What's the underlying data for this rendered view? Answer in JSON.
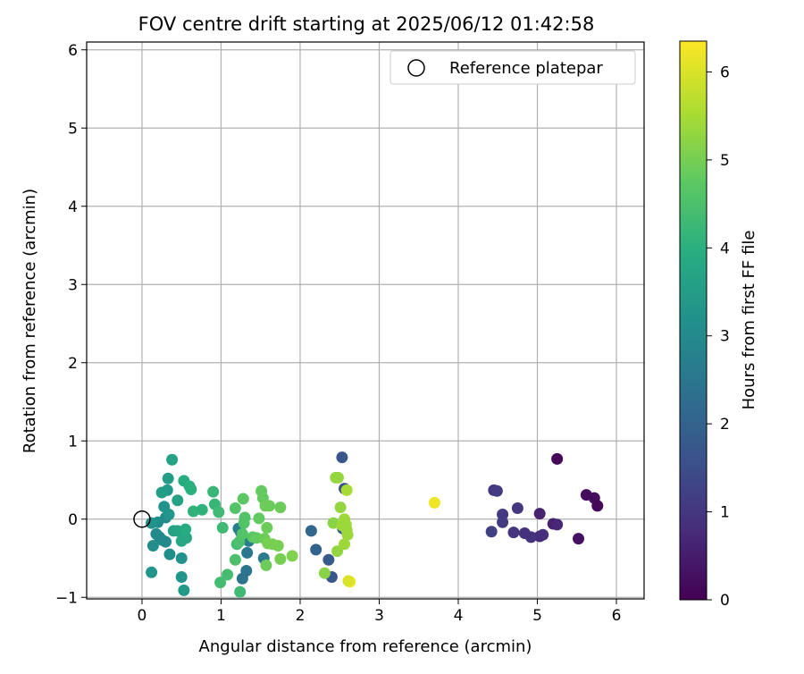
{
  "chart_data": {
    "type": "scatter",
    "title": "FOV centre drift starting at 2025/06/12 01:42:58",
    "xlabel": "Angular distance from reference (arcmin)",
    "ylabel": "Rotation from reference (arcmin)",
    "xlim": [
      -0.7,
      6.35
    ],
    "ylim": [
      -1.02,
      6.1
    ],
    "xticks": [
      "0",
      "1",
      "2",
      "3",
      "4",
      "5",
      "6"
    ],
    "yticks": [
      "−1",
      "0",
      "1",
      "2",
      "3",
      "4",
      "5",
      "6"
    ],
    "grid": true,
    "legend": {
      "position": "top-right",
      "entries": [
        "Reference platepar"
      ]
    },
    "reference_point": {
      "x": 0,
      "y": 0
    },
    "colorbar": {
      "label": "Hours from first FF file",
      "range": [
        0,
        6.35
      ],
      "ticks": [
        "0",
        "1",
        "2",
        "3",
        "4",
        "5",
        "6"
      ],
      "colormap": "viridis"
    },
    "points": [
      {
        "x": 5.25,
        "y": 0.77,
        "h": 0.1
      },
      {
        "x": 5.62,
        "y": 0.31,
        "h": 0.2
      },
      {
        "x": 5.72,
        "y": 0.27,
        "h": 0.2
      },
      {
        "x": 5.76,
        "y": 0.17,
        "h": 0.1
      },
      {
        "x": 5.52,
        "y": -0.25,
        "h": 0.3
      },
      {
        "x": 5.2,
        "y": -0.06,
        "h": 0.6
      },
      {
        "x": 5.25,
        "y": -0.07,
        "h": 0.7
      },
      {
        "x": 5.03,
        "y": 0.07,
        "h": 0.6
      },
      {
        "x": 5.07,
        "y": -0.2,
        "h": 0.9
      },
      {
        "x": 5.03,
        "y": -0.22,
        "h": 0.8
      },
      {
        "x": 4.92,
        "y": -0.23,
        "h": 0.9
      },
      {
        "x": 4.84,
        "y": -0.18,
        "h": 0.9
      },
      {
        "x": 4.7,
        "y": -0.17,
        "h": 1.0
      },
      {
        "x": 4.75,
        "y": 0.14,
        "h": 1.0
      },
      {
        "x": 4.56,
        "y": 0.06,
        "h": 1.1
      },
      {
        "x": 4.56,
        "y": -0.04,
        "h": 1.1
      },
      {
        "x": 4.45,
        "y": 0.37,
        "h": 1.0
      },
      {
        "x": 4.49,
        "y": 0.36,
        "h": 1.1
      },
      {
        "x": 4.42,
        "y": -0.16,
        "h": 1.2
      },
      {
        "x": 2.53,
        "y": 0.79,
        "h": 1.7
      },
      {
        "x": 2.56,
        "y": 0.39,
        "h": 1.6
      },
      {
        "x": 2.54,
        "y": -0.12,
        "h": 1.8
      },
      {
        "x": 2.4,
        "y": -0.74,
        "h": 1.7
      },
      {
        "x": 2.36,
        "y": -0.52,
        "h": 1.8
      },
      {
        "x": 2.2,
        "y": -0.39,
        "h": 2.0
      },
      {
        "x": 2.14,
        "y": -0.15,
        "h": 2.1
      },
      {
        "x": 1.27,
        "y": -0.76,
        "h": 2.4
      },
      {
        "x": 1.32,
        "y": -0.66,
        "h": 2.4
      },
      {
        "x": 1.33,
        "y": -0.43,
        "h": 2.5
      },
      {
        "x": 1.25,
        "y": -0.17,
        "h": 2.6
      },
      {
        "x": 1.54,
        "y": -0.5,
        "h": 2.6
      },
      {
        "x": 1.35,
        "y": -0.28,
        "h": 2.6
      },
      {
        "x": 1.22,
        "y": -0.12,
        "h": 2.7
      },
      {
        "x": 0.22,
        "y": -0.23,
        "h": 2.8
      },
      {
        "x": 0.3,
        "y": -0.29,
        "h": 3.1
      },
      {
        "x": 0.14,
        "y": -0.34,
        "h": 3.1
      },
      {
        "x": 0.35,
        "y": -0.45,
        "h": 3.1
      },
      {
        "x": 0.5,
        "y": -0.5,
        "h": 3.2
      },
      {
        "x": 0.18,
        "y": -0.19,
        "h": 3.0
      },
      {
        "x": 0.26,
        "y": -0.27,
        "h": 3.0
      },
      {
        "x": 0.3,
        "y": 0.02,
        "h": 3.0
      },
      {
        "x": 0.2,
        "y": -0.04,
        "h": 3.1
      },
      {
        "x": 0.12,
        "y": -0.05,
        "h": 3.2
      },
      {
        "x": 0.12,
        "y": -0.68,
        "h": 3.3
      },
      {
        "x": 0.5,
        "y": -0.74,
        "h": 3.3
      },
      {
        "x": 0.53,
        "y": -0.91,
        "h": 3.4
      },
      {
        "x": 0.34,
        "y": 0.06,
        "h": 3.3
      },
      {
        "x": 0.28,
        "y": 0.16,
        "h": 3.2
      },
      {
        "x": 0.32,
        "y": 0.37,
        "h": 3.4
      },
      {
        "x": 0.25,
        "y": 0.34,
        "h": 3.5
      },
      {
        "x": 0.33,
        "y": 0.52,
        "h": 3.5
      },
      {
        "x": 0.38,
        "y": 0.76,
        "h": 3.6
      },
      {
        "x": 0.45,
        "y": 0.24,
        "h": 3.6
      },
      {
        "x": 0.4,
        "y": -0.15,
        "h": 3.6
      },
      {
        "x": 0.45,
        "y": -0.15,
        "h": 3.7
      },
      {
        "x": 0.5,
        "y": -0.28,
        "h": 3.8
      },
      {
        "x": 0.56,
        "y": -0.24,
        "h": 3.8
      },
      {
        "x": 0.55,
        "y": -0.13,
        "h": 3.9
      },
      {
        "x": 0.53,
        "y": 0.49,
        "h": 3.9
      },
      {
        "x": 0.6,
        "y": 0.42,
        "h": 4.0
      },
      {
        "x": 0.62,
        "y": 0.38,
        "h": 4.0
      },
      {
        "x": 0.65,
        "y": 0.1,
        "h": 4.1
      },
      {
        "x": 0.76,
        "y": 0.12,
        "h": 4.1
      },
      {
        "x": 0.9,
        "y": 0.35,
        "h": 4.2
      },
      {
        "x": 0.92,
        "y": 0.19,
        "h": 4.2
      },
      {
        "x": 0.97,
        "y": 0.09,
        "h": 4.3
      },
      {
        "x": 1.02,
        "y": -0.11,
        "h": 4.3
      },
      {
        "x": 0.99,
        "y": -0.81,
        "h": 4.4
      },
      {
        "x": 1.08,
        "y": -0.71,
        "h": 4.4
      },
      {
        "x": 1.2,
        "y": -0.32,
        "h": 4.4
      },
      {
        "x": 1.24,
        "y": -0.93,
        "h": 4.3
      },
      {
        "x": 1.18,
        "y": -0.52,
        "h": 4.5
      },
      {
        "x": 1.23,
        "y": -0.29,
        "h": 4.5
      },
      {
        "x": 1.27,
        "y": -0.19,
        "h": 4.6
      },
      {
        "x": 1.29,
        "y": -0.05,
        "h": 4.6
      },
      {
        "x": 1.3,
        "y": 0.02,
        "h": 4.6
      },
      {
        "x": 1.18,
        "y": 0.14,
        "h": 4.6
      },
      {
        "x": 1.28,
        "y": 0.26,
        "h": 4.7
      },
      {
        "x": 1.4,
        "y": -0.23,
        "h": 4.7
      },
      {
        "x": 1.45,
        "y": -0.24,
        "h": 4.8
      },
      {
        "x": 1.51,
        "y": 0.36,
        "h": 4.8
      },
      {
        "x": 1.53,
        "y": 0.27,
        "h": 4.8
      },
      {
        "x": 1.48,
        "y": 0.01,
        "h": 4.8
      },
      {
        "x": 1.56,
        "y": 0.17,
        "h": 4.9
      },
      {
        "x": 1.61,
        "y": 0.17,
        "h": 4.9
      },
      {
        "x": 1.58,
        "y": -0.11,
        "h": 4.9
      },
      {
        "x": 1.55,
        "y": -0.25,
        "h": 4.9
      },
      {
        "x": 1.59,
        "y": -0.31,
        "h": 5.0
      },
      {
        "x": 1.57,
        "y": -0.59,
        "h": 4.9
      },
      {
        "x": 1.65,
        "y": -0.32,
        "h": 5.0
      },
      {
        "x": 1.72,
        "y": -0.34,
        "h": 5.0
      },
      {
        "x": 1.75,
        "y": 0.15,
        "h": 4.9
      },
      {
        "x": 1.75,
        "y": -0.51,
        "h": 5.0
      },
      {
        "x": 1.9,
        "y": -0.47,
        "h": 5.1
      },
      {
        "x": 2.31,
        "y": -0.69,
        "h": 5.2
      },
      {
        "x": 2.42,
        "y": -0.05,
        "h": 5.2
      },
      {
        "x": 2.45,
        "y": 0.53,
        "h": 5.3
      },
      {
        "x": 2.48,
        "y": 0.53,
        "h": 5.3
      },
      {
        "x": 2.51,
        "y": 0.15,
        "h": 5.3
      },
      {
        "x": 2.47,
        "y": -0.41,
        "h": 5.3
      },
      {
        "x": 2.53,
        "y": -0.08,
        "h": 5.4
      },
      {
        "x": 2.56,
        "y": 0.0,
        "h": 5.4
      },
      {
        "x": 2.58,
        "y": -0.07,
        "h": 5.4
      },
      {
        "x": 2.59,
        "y": -0.14,
        "h": 5.4
      },
      {
        "x": 2.6,
        "y": -0.2,
        "h": 5.4
      },
      {
        "x": 2.56,
        "y": -0.32,
        "h": 5.4
      },
      {
        "x": 2.59,
        "y": 0.37,
        "h": 5.5
      },
      {
        "x": 2.63,
        "y": -0.8,
        "h": 6.2
      },
      {
        "x": 2.61,
        "y": -0.79,
        "h": 6.0
      },
      {
        "x": 3.7,
        "y": 0.21,
        "h": 6.2
      }
    ]
  }
}
